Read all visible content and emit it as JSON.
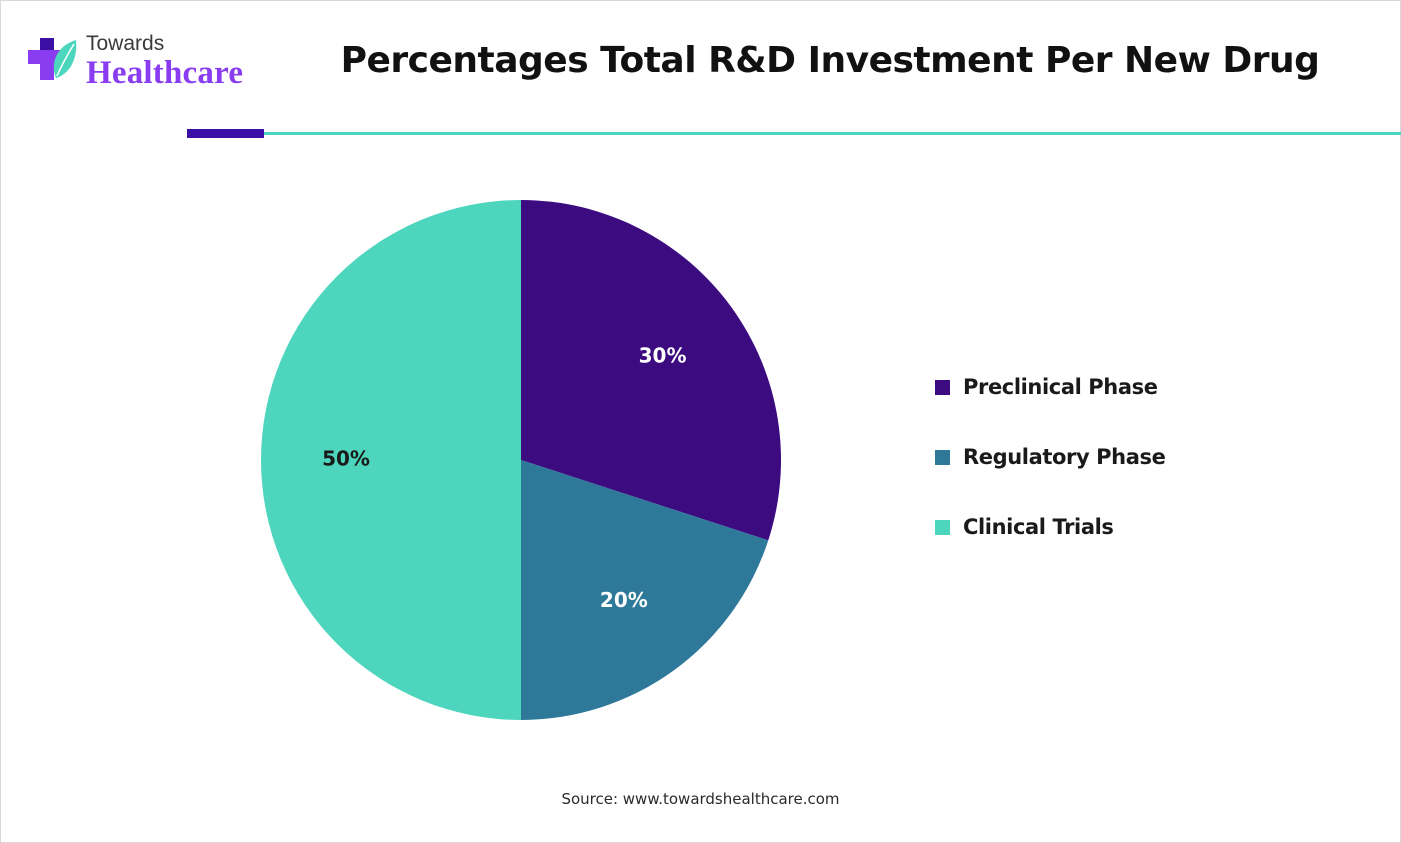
{
  "logo": {
    "line1": "Towards",
    "line2": "Healthcare",
    "mark": "plus-leaf-icon",
    "colors": {
      "dark": "#3c0fa6",
      "mid": "#8a3cf0",
      "leaf": "#4cd6bd"
    }
  },
  "header": {
    "title": "Percentages Total R&D Investment Per New Drug",
    "accent_color": "#3c0fa6",
    "rule_color": "#4cd6bd"
  },
  "chart_data": {
    "type": "pie",
    "title": "Percentages Total R&D Investment Per New Drug",
    "slices": [
      {
        "label": "Preclinical Phase",
        "value": 30,
        "display": "30%",
        "color": "#3c0b80"
      },
      {
        "label": "Regulatory Phase",
        "value": 20,
        "display": "20%",
        "color": "#2e7899"
      },
      {
        "label": "Clinical Trials",
        "value": 50,
        "display": "50%",
        "color": "#4dd6bd"
      }
    ],
    "start_angle_deg": 0,
    "direction": "clockwise",
    "legend_position": "right"
  },
  "footer": {
    "source": "Source: www.towardshealthcare.com"
  }
}
